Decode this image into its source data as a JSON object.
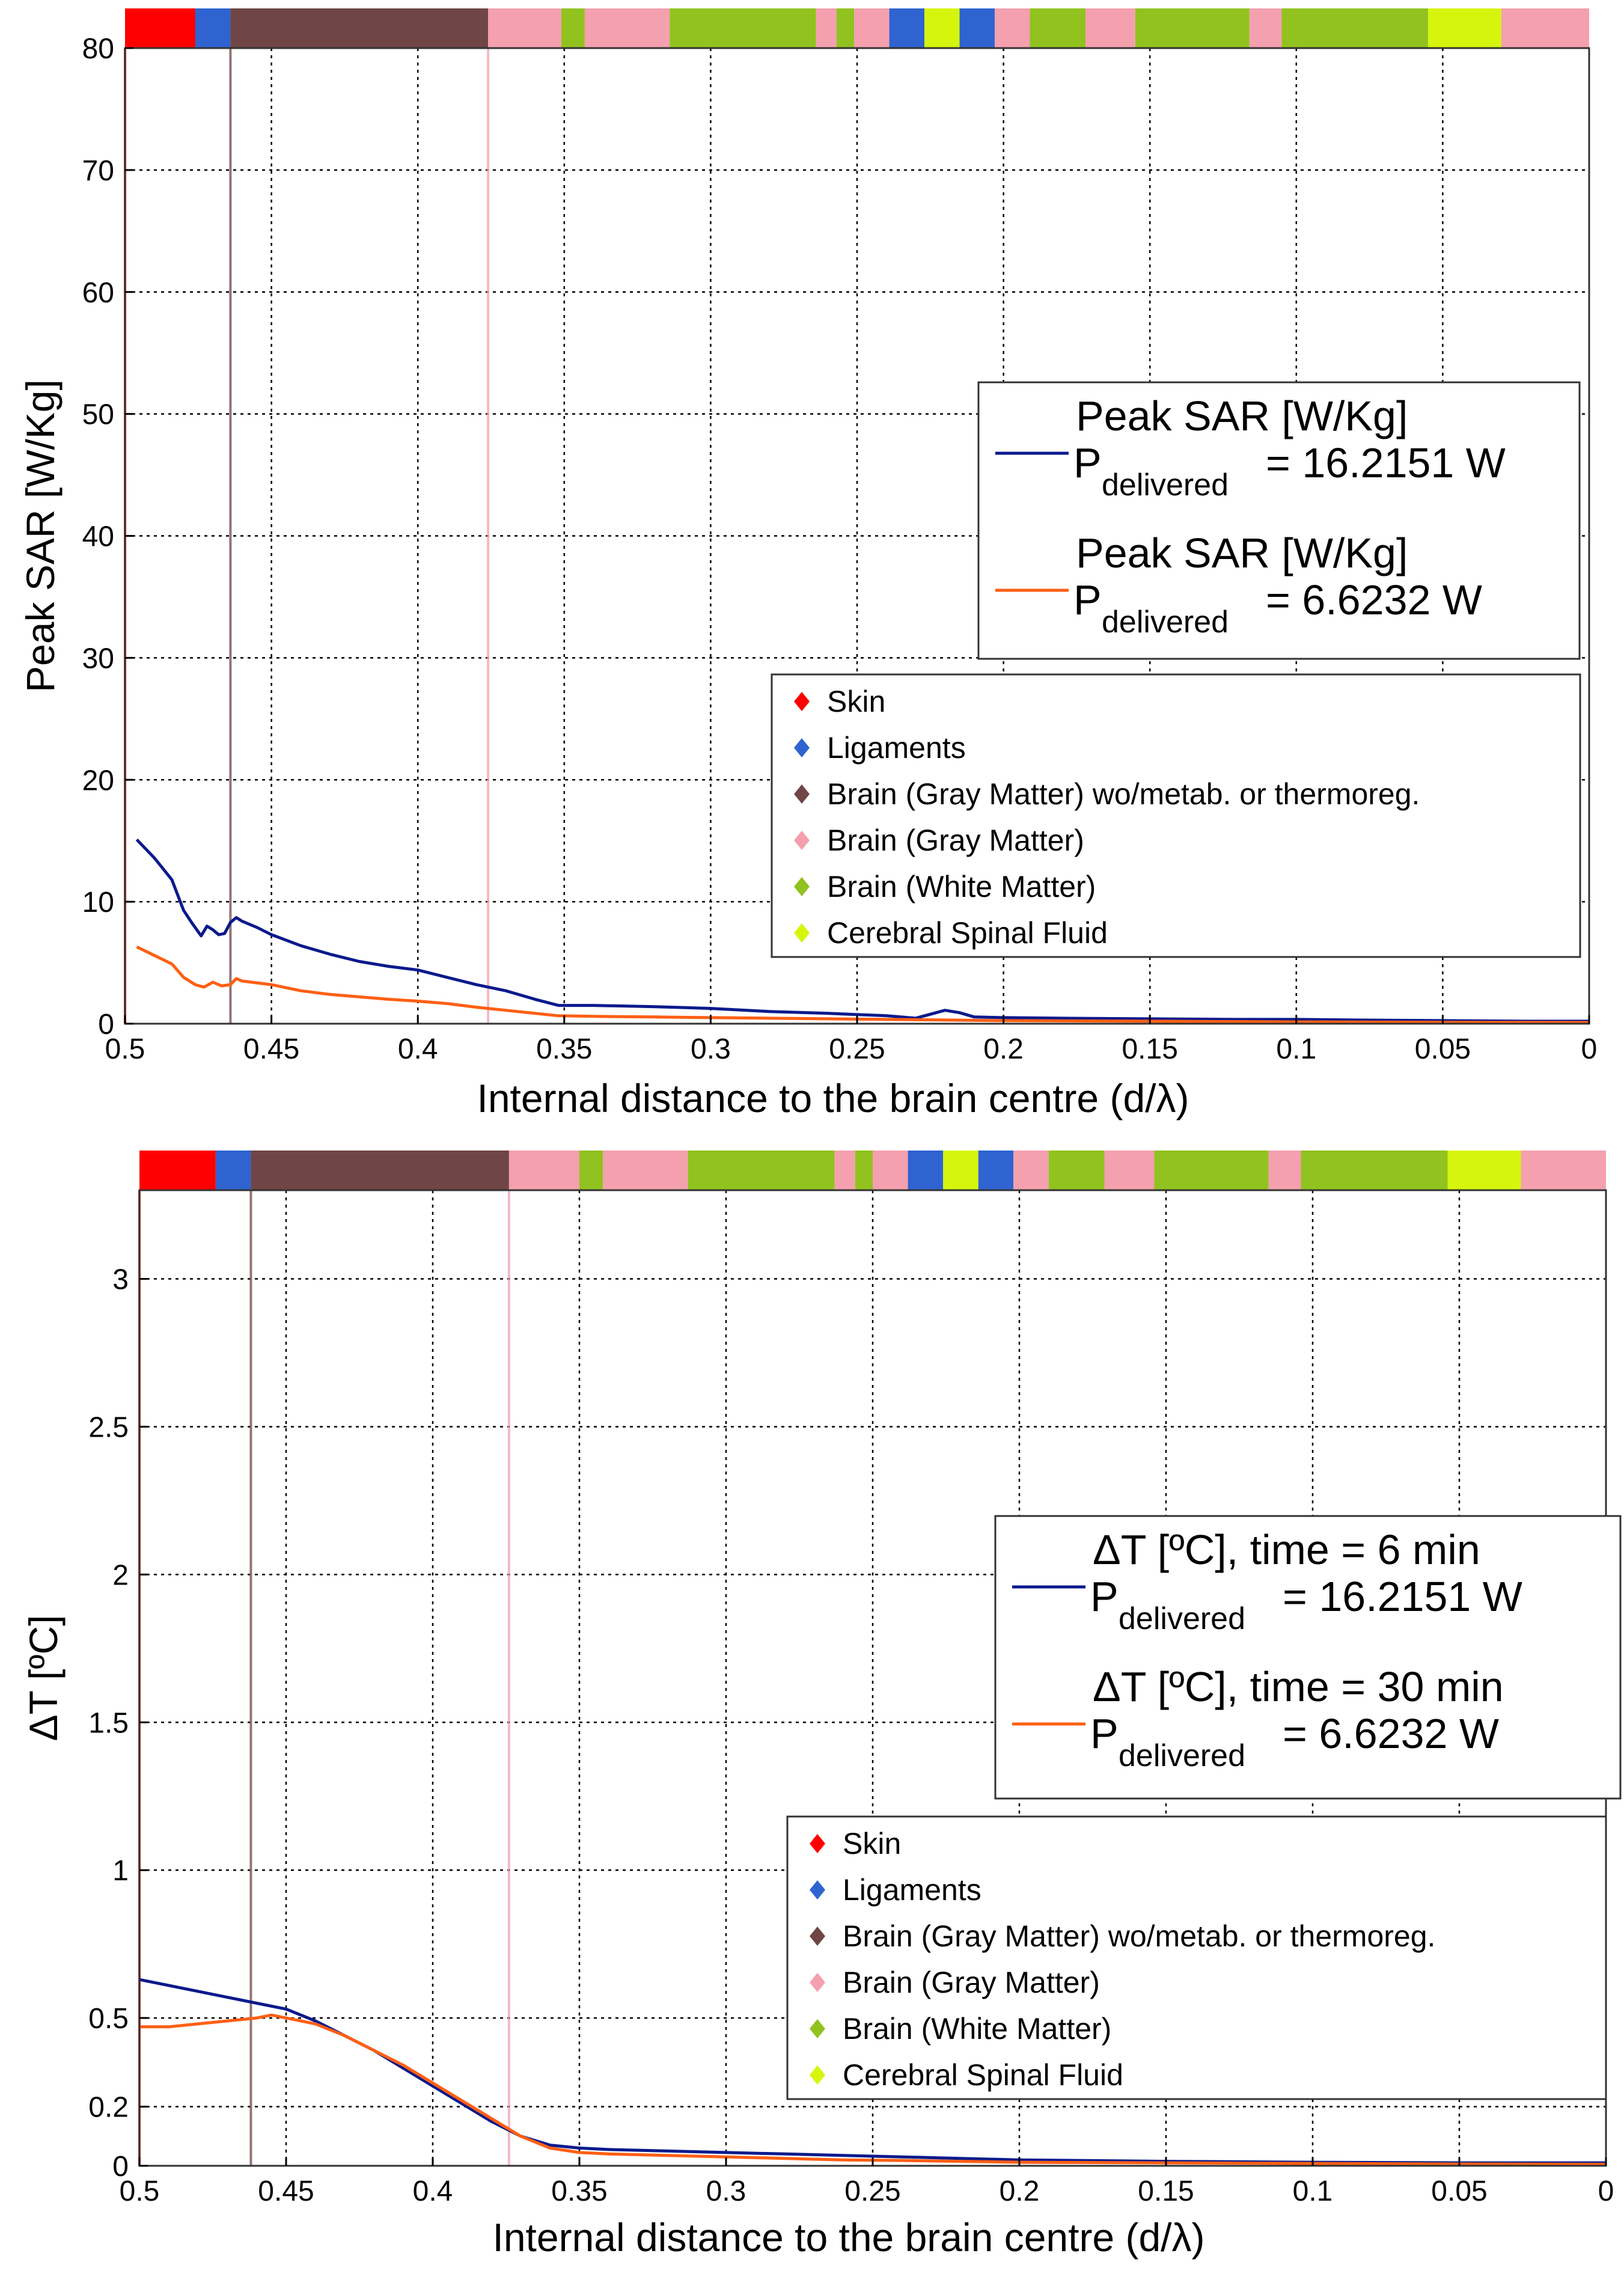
{
  "chart_data": [
    {
      "type": "line",
      "xlabel": "Internal distance to the brain centre (d/λ)",
      "ylabel": "Peak SAR [W/Kg]",
      "xlim": [
        0.5,
        0
      ],
      "ylim": [
        0,
        80
      ],
      "x_reversed": true,
      "grid": true,
      "x_ticks": [
        "0.5",
        "0.45",
        "0.4",
        "0.35",
        "0.3",
        "0.25",
        "0.2",
        "0.15",
        "0.1",
        "0.05",
        "0"
      ],
      "x_tick_values": [
        0.5,
        0.45,
        0.4,
        0.35,
        0.3,
        0.25,
        0.2,
        0.15,
        0.1,
        0.05,
        0
      ],
      "y_ticks": [
        "0",
        "10",
        "20",
        "30",
        "40",
        "50",
        "60",
        "70",
        "80"
      ],
      "y_tick_values": [
        0,
        10,
        20,
        30,
        40,
        50,
        60,
        70,
        80
      ],
      "tissue_bar": [
        {
          "tissue": "Skin",
          "from": 0.5,
          "to": 0.476
        },
        {
          "tissue": "Ligaments",
          "from": 0.476,
          "to": 0.464
        },
        {
          "tissue": "Brain (Gray Matter) wo/metab. or thermoreg.",
          "from": 0.464,
          "to": 0.376
        },
        {
          "tissue": "Brain (Gray Matter)",
          "from": 0.376,
          "to": 0.351
        },
        {
          "tissue": "Brain (White Matter)",
          "from": 0.351,
          "to": 0.343
        },
        {
          "tissue": "Brain (Gray Matter)",
          "from": 0.343,
          "to": 0.314
        },
        {
          "tissue": "Brain (White Matter)",
          "from": 0.314,
          "to": 0.264
        },
        {
          "tissue": "Brain (Gray Matter)",
          "from": 0.264,
          "to": 0.257
        },
        {
          "tissue": "Brain (White Matter)",
          "from": 0.257,
          "to": 0.251
        },
        {
          "tissue": "Brain (Gray Matter)",
          "from": 0.251,
          "to": 0.239
        },
        {
          "tissue": "Ligaments",
          "from": 0.239,
          "to": 0.227
        },
        {
          "tissue": "Cerebral Spinal Fluid",
          "from": 0.227,
          "to": 0.215
        },
        {
          "tissue": "Ligaments",
          "from": 0.215,
          "to": 0.203
        },
        {
          "tissue": "Brain (Gray Matter)",
          "from": 0.203,
          "to": 0.191
        },
        {
          "tissue": "Brain (White Matter)",
          "from": 0.191,
          "to": 0.172
        },
        {
          "tissue": "Brain (Gray Matter)",
          "from": 0.172,
          "to": 0.155
        },
        {
          "tissue": "Brain (White Matter)",
          "from": 0.155,
          "to": 0.116
        },
        {
          "tissue": "Brain (Gray Matter)",
          "from": 0.116,
          "to": 0.105
        },
        {
          "tissue": "Brain (White Matter)",
          "from": 0.105,
          "to": 0.055
        },
        {
          "tissue": "Cerebral Spinal Fluid",
          "from": 0.055,
          "to": 0.03
        },
        {
          "tissue": "Brain (Gray Matter)",
          "from": 0.03,
          "to": 0
        }
      ],
      "boundary_lines": [
        {
          "x": 0.5,
          "tissue": "Skin"
        },
        {
          "x": 0.464,
          "tissue": "Brain (Gray Matter) wo/metab. or thermoreg."
        },
        {
          "x": 0.376,
          "tissue": "Brain (Gray Matter)"
        }
      ],
      "series": [
        {
          "name": "Peak SAR [W/Kg]",
          "power_label": "= 16.2151 W",
          "color": "#0b1a8c",
          "x": [
            0.496,
            0.49,
            0.484,
            0.48,
            0.477,
            0.474,
            0.472,
            0.47,
            0.468,
            0.466,
            0.464,
            0.462,
            0.46,
            0.455,
            0.45,
            0.44,
            0.43,
            0.42,
            0.41,
            0.4,
            0.39,
            0.38,
            0.37,
            0.36,
            0.352,
            0.34,
            0.32,
            0.3,
            0.28,
            0.26,
            0.24,
            0.23,
            0.22,
            0.215,
            0.21,
            0.2,
            0.18,
            0.15,
            0.12,
            0.1,
            0.08,
            0.05,
            0.02,
            0
          ],
          "y": [
            15.1,
            13.6,
            11.8,
            9.3,
            8.2,
            7.2,
            8.0,
            7.7,
            7.3,
            7.4,
            8.3,
            8.7,
            8.4,
            7.9,
            7.3,
            6.4,
            5.7,
            5.1,
            4.7,
            4.4,
            3.8,
            3.2,
            2.7,
            2.0,
            1.5,
            1.5,
            1.4,
            1.25,
            1.0,
            0.85,
            0.65,
            0.45,
            1.1,
            0.9,
            0.55,
            0.5,
            0.45,
            0.4,
            0.35,
            0.35,
            0.3,
            0.25,
            0.2,
            0.2
          ]
        },
        {
          "name": "Peak SAR [W/Kg]",
          "power_label": "= 6.6232 W",
          "color": "#ff5f14",
          "x": [
            0.496,
            0.49,
            0.484,
            0.48,
            0.476,
            0.473,
            0.47,
            0.467,
            0.464,
            0.462,
            0.46,
            0.45,
            0.44,
            0.43,
            0.42,
            0.41,
            0.4,
            0.39,
            0.38,
            0.37,
            0.36,
            0.352,
            0.34,
            0.32,
            0.3,
            0.28,
            0.26,
            0.24,
            0.22,
            0.2,
            0.15,
            0.1,
            0.05,
            0
          ],
          "y": [
            6.3,
            5.6,
            4.9,
            3.8,
            3.2,
            3.0,
            3.4,
            3.1,
            3.2,
            3.7,
            3.5,
            3.2,
            2.7,
            2.4,
            2.2,
            2.0,
            1.85,
            1.65,
            1.35,
            1.1,
            0.85,
            0.65,
            0.6,
            0.55,
            0.5,
            0.45,
            0.4,
            0.35,
            0.3,
            0.25,
            0.2,
            0.15,
            0.12,
            0.1
          ]
        }
      ]
    },
    {
      "type": "line",
      "xlabel": "Internal distance to the brain centre (d/λ)",
      "ylabel": "ΔT [ºC]",
      "xlim": [
        0.5,
        0
      ],
      "ylim": [
        0,
        3.3
      ],
      "x_reversed": true,
      "grid": true,
      "x_ticks": [
        "0.5",
        "0.45",
        "0.4",
        "0.35",
        "0.3",
        "0.25",
        "0.2",
        "0.15",
        "0.1",
        "0.05",
        "0"
      ],
      "x_tick_values": [
        0.5,
        0.45,
        0.4,
        0.35,
        0.3,
        0.25,
        0.2,
        0.15,
        0.1,
        0.05,
        0
      ],
      "y_ticks": [
        "0",
        "0.2",
        "0.5",
        "1",
        "1.5",
        "2",
        "2.5",
        "3"
      ],
      "y_tick_values": [
        0,
        0.2,
        0.5,
        1,
        1.5,
        2,
        2.5,
        3
      ],
      "tissue_bar": [
        {
          "tissue": "Skin",
          "from": 0.5,
          "to": 0.474
        },
        {
          "tissue": "Ligaments",
          "from": 0.474,
          "to": 0.462
        },
        {
          "tissue": "Brain (Gray Matter) wo/metab. or thermoreg.",
          "from": 0.462,
          "to": 0.374
        },
        {
          "tissue": "Brain (Gray Matter)",
          "from": 0.374,
          "to": 0.35
        },
        {
          "tissue": "Brain (White Matter)",
          "from": 0.35,
          "to": 0.342
        },
        {
          "tissue": "Brain (Gray Matter)",
          "from": 0.342,
          "to": 0.313
        },
        {
          "tissue": "Brain (White Matter)",
          "from": 0.313,
          "to": 0.263
        },
        {
          "tissue": "Brain (Gray Matter)",
          "from": 0.263,
          "to": 0.256
        },
        {
          "tissue": "Brain (White Matter)",
          "from": 0.256,
          "to": 0.25
        },
        {
          "tissue": "Brain (Gray Matter)",
          "from": 0.25,
          "to": 0.238
        },
        {
          "tissue": "Ligaments",
          "from": 0.238,
          "to": 0.226
        },
        {
          "tissue": "Cerebral Spinal Fluid",
          "from": 0.226,
          "to": 0.214
        },
        {
          "tissue": "Ligaments",
          "from": 0.214,
          "to": 0.202
        },
        {
          "tissue": "Brain (Gray Matter)",
          "from": 0.202,
          "to": 0.19
        },
        {
          "tissue": "Brain (White Matter)",
          "from": 0.19,
          "to": 0.171
        },
        {
          "tissue": "Brain (Gray Matter)",
          "from": 0.171,
          "to": 0.154
        },
        {
          "tissue": "Brain (White Matter)",
          "from": 0.154,
          "to": 0.115
        },
        {
          "tissue": "Brain (Gray Matter)",
          "from": 0.115,
          "to": 0.104
        },
        {
          "tissue": "Brain (White Matter)",
          "from": 0.104,
          "to": 0.054
        },
        {
          "tissue": "Cerebral Spinal Fluid",
          "from": 0.054,
          "to": 0.029
        },
        {
          "tissue": "Brain (Gray Matter)",
          "from": 0.029,
          "to": 0
        }
      ],
      "boundary_lines": [
        {
          "x": 0.5,
          "tissue": "Skin"
        },
        {
          "x": 0.462,
          "tissue": "Brain (Gray Matter) wo/metab. or thermoreg."
        },
        {
          "x": 0.374,
          "tissue": "Brain (Gray Matter)"
        }
      ],
      "series": [
        {
          "name": "ΔT [ºC], time = 6 min",
          "power_label": "= 16.2151 W",
          "color": "#0b1a8c",
          "x": [
            0.5,
            0.49,
            0.48,
            0.47,
            0.46,
            0.45,
            0.44,
            0.43,
            0.42,
            0.41,
            0.4,
            0.39,
            0.38,
            0.37,
            0.36,
            0.35,
            0.34,
            0.32,
            0.3,
            0.28,
            0.26,
            0.24,
            0.22,
            0.2,
            0.15,
            0.1,
            0.05,
            0
          ],
          "y": [
            0.63,
            0.61,
            0.59,
            0.57,
            0.55,
            0.53,
            0.49,
            0.44,
            0.39,
            0.33,
            0.27,
            0.21,
            0.15,
            0.1,
            0.07,
            0.06,
            0.055,
            0.05,
            0.045,
            0.04,
            0.035,
            0.03,
            0.025,
            0.02,
            0.015,
            0.012,
            0.01,
            0.01
          ]
        },
        {
          "name": "ΔT [ºC], time = 30 min",
          "power_label": "= 6.6232 W",
          "color": "#ff5f14",
          "x": [
            0.5,
            0.49,
            0.48,
            0.47,
            0.46,
            0.455,
            0.45,
            0.44,
            0.43,
            0.42,
            0.41,
            0.4,
            0.39,
            0.38,
            0.37,
            0.36,
            0.35,
            0.34,
            0.32,
            0.3,
            0.28,
            0.26,
            0.24,
            0.22,
            0.2,
            0.15,
            0.1,
            0.05,
            0
          ],
          "y": [
            0.47,
            0.47,
            0.48,
            0.49,
            0.5,
            0.51,
            0.5,
            0.48,
            0.44,
            0.39,
            0.34,
            0.28,
            0.22,
            0.16,
            0.1,
            0.06,
            0.045,
            0.04,
            0.035,
            0.03,
            0.025,
            0.02,
            0.018,
            0.015,
            0.012,
            0.01,
            0.008,
            0.006,
            0.005
          ]
        }
      ]
    }
  ],
  "legend_subscript": "delivered",
  "legend_power_symbol": "P",
  "tissues": [
    {
      "name": "Skin",
      "color": "#ff0000"
    },
    {
      "name": "Ligaments",
      "color": "#2f63d0"
    },
    {
      "name": "Brain (Gray Matter) wo/metab. or thermoreg.",
      "color": "#704545"
    },
    {
      "name": "Brain (Gray Matter)",
      "color": "#f4a0ae"
    },
    {
      "name": "Brain (White Matter)",
      "color": "#91c21f"
    },
    {
      "name": "Cerebral Spinal Fluid",
      "color": "#d6f50c"
    }
  ],
  "colors": {
    "axis": "#000000",
    "frame": "#333333",
    "legend_border": "#333333"
  }
}
